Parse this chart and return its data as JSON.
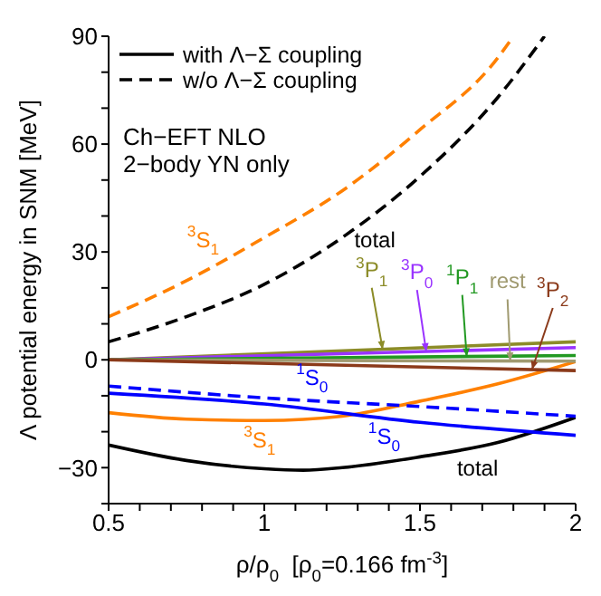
{
  "chart_data": {
    "type": "line",
    "xlabel": "ρ/ρ$_{0}$  [ρ$_{0}$=0.166 fm$^{-3}$]",
    "ylabel": "Λ  potential energy in SNM [MeV]",
    "xlim": [
      0.5,
      2
    ],
    "ylim": [
      -40,
      90
    ],
    "xticks": [
      0.5,
      {
        "value": 0.6,
        "label": null
      },
      {
        "value": 0.7,
        "label": null
      },
      {
        "value": 0.8,
        "label": null
      },
      {
        "value": 0.9,
        "label": null
      },
      1,
      {
        "value": 1.1,
        "label": null
      },
      {
        "value": 1.2,
        "label": null
      },
      {
        "value": 1.3,
        "label": null
      },
      {
        "value": 1.4,
        "label": null
      },
      1.5,
      {
        "value": 1.6,
        "label": null
      },
      {
        "value": 1.7,
        "label": null
      },
      {
        "value": 1.8,
        "label": null
      },
      {
        "value": 1.9,
        "label": null
      },
      2
    ],
    "yticks": [
      {
        "value": -40,
        "label": null
      },
      -30,
      {
        "value": -20,
        "label": null
      },
      {
        "value": -10,
        "label": null
      },
      0,
      {
        "value": 10,
        "label": null
      },
      {
        "value": 20,
        "label": null
      },
      30,
      {
        "value": 40,
        "label": null
      },
      {
        "value": 50,
        "label": null
      },
      60,
      {
        "value": 70,
        "label": null
      },
      {
        "value": 80,
        "label": null
      },
      90
    ],
    "legend": "top left",
    "marker": "none",
    "series": [
      {
        "name": "with Λ−Σ coupling",
        "color": "#000000",
        "line_style": "solid",
        "x": [
          0.5,
          0.75,
          1.0,
          1.125,
          1.25,
          1.5,
          1.75,
          2.0
        ],
        "values": [
          -23.7,
          -28,
          -30.3,
          -30.7,
          -30,
          -27,
          -23,
          -16
        ]
      },
      {
        "name": "w/o Λ−Σ coupling",
        "color": "#000000",
        "line_style": "dashed",
        "x": [
          0.5,
          0.75,
          1.0,
          1.25,
          1.5,
          1.75,
          1.9
        ],
        "values": [
          5,
          12,
          21,
          34,
          51,
          73,
          90
        ]
      },
      {
        "color": "#ff8000",
        "line_style": "dashed",
        "x": [
          0.5,
          0.75,
          1.0,
          1.25,
          1.5,
          1.75,
          1.8
        ],
        "values": [
          12,
          22,
          34,
          47,
          64,
          84,
          90
        ]
      },
      {
        "color": "#ff8000",
        "line_style": "solid",
        "x": [
          0.5,
          0.75,
          1.0,
          1.25,
          1.5,
          1.75,
          2.0
        ],
        "values": [
          -14.7,
          -16.5,
          -16.9,
          -15.7,
          -11.5,
          -6.7,
          -0.5
        ]
      },
      {
        "color": "#0000ff",
        "line_style": "solid",
        "x": [
          0.5,
          1.0,
          1.5,
          2.0
        ],
        "values": [
          -9.3,
          -12.3,
          -17.4,
          -21
        ]
      },
      {
        "color": "#0000ff",
        "line_style": "dashed",
        "x": [
          0.5,
          1.0,
          1.5,
          2.0
        ],
        "values": [
          -7.3,
          -10.6,
          -13,
          -15.7
        ]
      },
      {
        "color": "#8c8c28",
        "line_style": "solid",
        "x": [
          0.5,
          2.0
        ],
        "values": [
          0,
          5
        ]
      },
      {
        "color": "#9933ff",
        "line_style": "solid",
        "x": [
          0.5,
          2.0
        ],
        "values": [
          0,
          3.4
        ]
      },
      {
        "color": "#229922",
        "line_style": "solid",
        "x": [
          0.5,
          2.0
        ],
        "values": [
          0,
          1.2
        ]
      },
      {
        "color": "#a09a70",
        "line_style": "solid",
        "x": [
          0.5,
          2.0
        ],
        "values": [
          0,
          -0.4
        ]
      },
      {
        "color": "#8b3a1a",
        "line_style": "solid",
        "x": [
          0.5,
          2.0
        ],
        "values": [
          0,
          -3
        ]
      }
    ],
    "annotations": [
      "Ch−EFT NLO",
      "2−body YN only",
      {
        "text": "$^{3}$S$_{1}$",
        "x": 0.85,
        "y": 26.8
      },
      {
        "text": "total",
        "x": 1.32,
        "y": 38.8
      },
      {
        "text": "$^{1}$S$_{0}$",
        "x": 1.2,
        "y": -11.6
      },
      {
        "text": "$^{3}$S$_{1}$",
        "x": 0.95,
        "y": -16.8
      },
      {
        "text": "$^{1}$S$_{0}$",
        "x": 1.35,
        "y": -15.9
      },
      {
        "text": "total",
        "x": 1.65,
        "y": -24.6
      },
      {
        "text": "$^{3}$P$_{1}$",
        "x": 1.38,
        "y": 2.9
      },
      {
        "text": "$^{3}$P$_{0}$",
        "x": 1.52,
        "y": 2.3
      },
      {
        "text": "$^{1}$P$_{1}$",
        "x": 1.65,
        "y": 0.9
      },
      {
        "text": "rest",
        "x": 1.79,
        "y": -0.3
      },
      {
        "text": "$^{3}$P$_{2}$",
        "x": 1.86,
        "y": -2.7
      }
    ]
  }
}
